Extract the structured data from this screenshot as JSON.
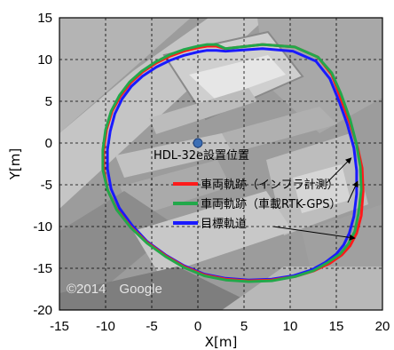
{
  "chart_data": {
    "type": "line",
    "title": "",
    "xlabel": "X[m]",
    "ylabel": "Y[m]",
    "xlim": [
      -15,
      20
    ],
    "ylim": [
      -20,
      15
    ],
    "xticks": [
      -15,
      -10,
      -5,
      0,
      5,
      10,
      15,
      20
    ],
    "yticks": [
      -20,
      -15,
      -10,
      -5,
      0,
      5,
      10,
      15
    ],
    "grid": true,
    "grid_style": "dashed",
    "background": "aerial photograph",
    "legend_position": "right-middle",
    "watermark": "©2014　Google",
    "series": [
      {
        "name": "車両軌跡（インフラ計測）",
        "color": "#ff1a1a",
        "x": [
          3,
          7,
          10.5,
          13,
          14.5,
          15.5,
          16.5,
          17.3,
          17.8,
          17.9,
          17.7,
          17.2,
          16.5,
          15.6,
          14.3,
          12.6,
          10.5,
          8,
          5.5,
          3,
          0.7,
          -1.5,
          -3.5,
          -5.5,
          -7.3,
          -8.8,
          -9.8,
          -10.2,
          -10.2,
          -9.9,
          -9.3,
          -8.4,
          -7.3,
          -6,
          -4.5,
          -3,
          -1.5,
          0,
          1,
          2,
          3
        ],
        "y": [
          11.3,
          11.8,
          11.5,
          10.3,
          8.2,
          5.3,
          2.3,
          -0.5,
          -3,
          -5.8,
          -8.7,
          -10.8,
          -12.3,
          -13.4,
          -14.4,
          -15.3,
          -16,
          -16.4,
          -16.5,
          -16.3,
          -15.8,
          -14.8,
          -13.5,
          -11.9,
          -10,
          -7.9,
          -5.6,
          -3.2,
          -0.8,
          1.6,
          3.8,
          5.6,
          7.2,
          8.5,
          9.6,
          10.4,
          11,
          11.4,
          11.6,
          11.6,
          11.3
        ]
      },
      {
        "name": "車両軌跡（車載RTK-GPS）",
        "color": "#22a84a",
        "x": [
          3,
          7,
          10.5,
          13,
          14.5,
          15.5,
          16.5,
          17.2,
          17.6,
          17.7,
          17.4,
          17,
          16.3,
          15.4,
          14.1,
          12.5,
          10.5,
          8,
          5.5,
          3,
          0.7,
          -1.5,
          -3.5,
          -5.5,
          -7.3,
          -8.8,
          -9.8,
          -10.3,
          -10.3,
          -10,
          -9.4,
          -8.5,
          -7.4,
          -6.1,
          -4.6,
          -3,
          -1.5,
          0,
          1,
          2,
          3
        ],
        "y": [
          11.3,
          11.8,
          11.5,
          10.3,
          8.4,
          5.9,
          2.8,
          -0.2,
          -2.8,
          -5.6,
          -8.4,
          -10.6,
          -12.1,
          -13.3,
          -14.3,
          -15.3,
          -16,
          -16.5,
          -16.6,
          -16.4,
          -15.9,
          -14.9,
          -13.6,
          -12,
          -10.1,
          -8,
          -5.6,
          -3.2,
          -0.8,
          1.6,
          3.8,
          5.7,
          7.3,
          8.6,
          9.7,
          10.6,
          11.2,
          11.6,
          11.8,
          11.8,
          11.3
        ]
      },
      {
        "name": "目標軌道",
        "color": "#1a1aff",
        "x": [
          3,
          7,
          10.3,
          12.8,
          14.3,
          15.3,
          16.2,
          16.9,
          17.2,
          17.2,
          16.9,
          16.4,
          15.8,
          15,
          13.8,
          12.3,
          10.3,
          8,
          5.5,
          3,
          0.7,
          -1.5,
          -3.5,
          -5.5,
          -7.1,
          -8.5,
          -9.4,
          -9.8,
          -9.8,
          -9.5,
          -9,
          -8.2,
          -7.2,
          -6,
          -4.5,
          -3,
          -1.5,
          0,
          1,
          2,
          3
        ],
        "y": [
          11,
          11.3,
          11,
          9.8,
          7.7,
          5,
          2.2,
          -0.6,
          -3.3,
          -6.1,
          -8.8,
          -10.8,
          -12.2,
          -13.3,
          -14.3,
          -15.2,
          -15.9,
          -16.3,
          -16.4,
          -16.2,
          -15.7,
          -14.7,
          -13.4,
          -11.8,
          -9.9,
          -7.8,
          -5.5,
          -3.1,
          -0.8,
          1.4,
          3.5,
          5.3,
          6.8,
          8,
          9.1,
          9.9,
          10.5,
          10.9,
          11.1,
          11.1,
          11
        ]
      }
    ],
    "sensor": {
      "label": "HDL-32e設置位置",
      "x": 0,
      "y": 0,
      "color": "#3d6fb5"
    },
    "annotations": [
      {
        "label": "車両軌跡（インフラ計測）",
        "arrow_to": [
          16.6,
          -1.8
        ]
      },
      {
        "label": "車両軌跡（車載RTK-GPS）",
        "arrow_to": [
          17.3,
          -4.6
        ]
      },
      {
        "label": "目標軌道",
        "arrow_to": [
          17.0,
          -11.4
        ]
      }
    ]
  }
}
